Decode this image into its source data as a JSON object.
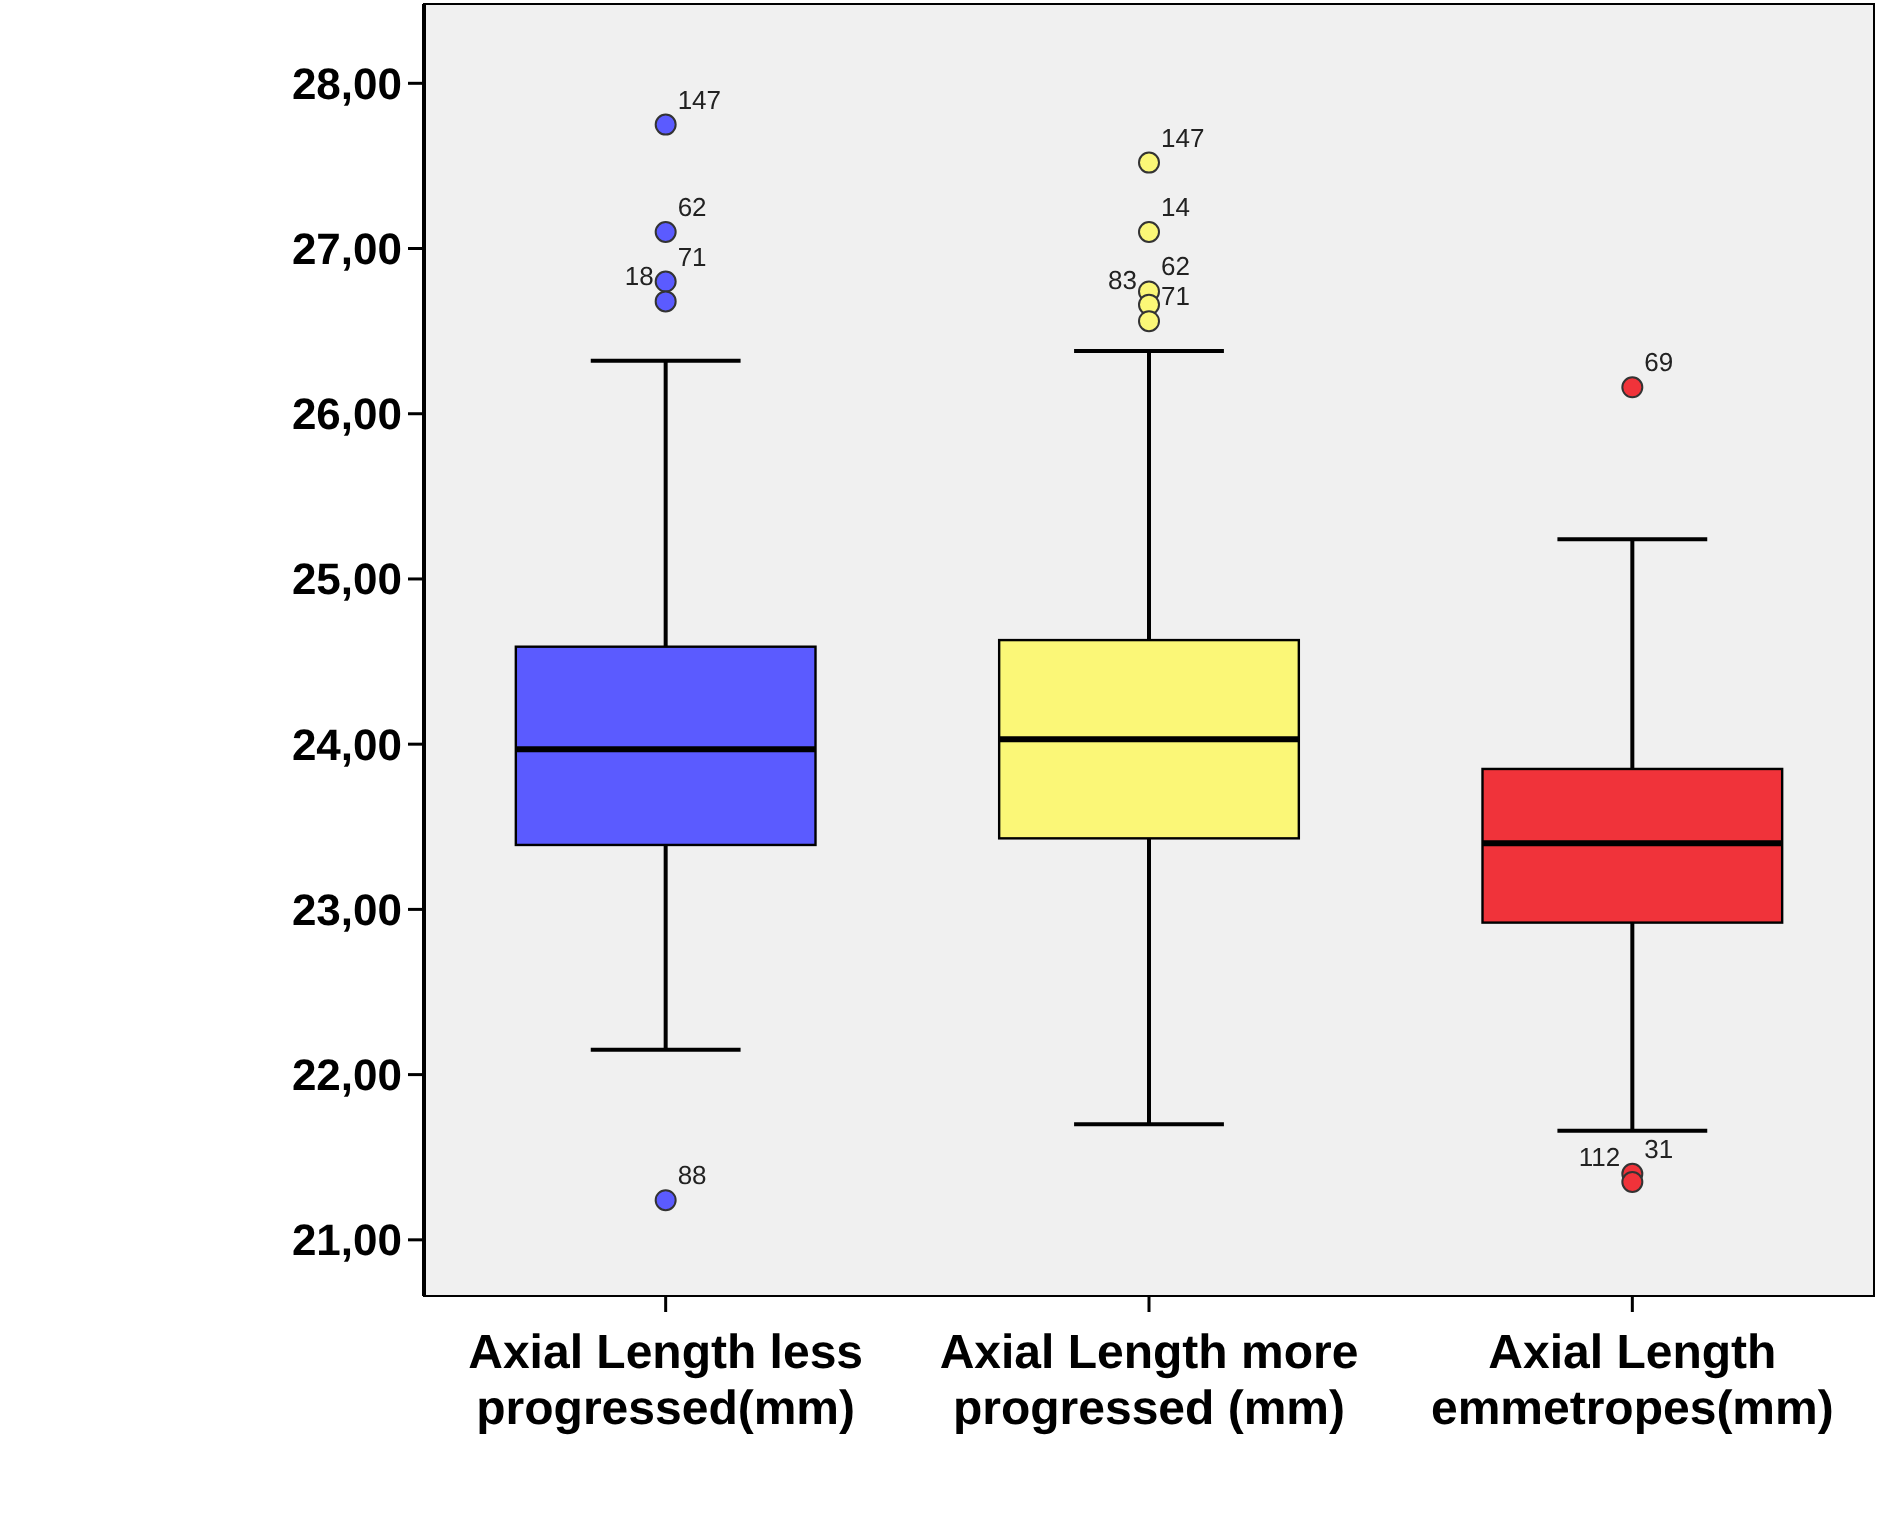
{
  "chart_data": {
    "type": "box",
    "categories": [
      "Axial Length less progressed(mm)",
      "Axial Length more progressed (mm)",
      "Axial Length emmetropes(mm)"
    ],
    "colors": [
      "#5b5bff",
      "#fbf777",
      "#f0333a"
    ],
    "boxes": [
      {
        "low": 22.15,
        "q1": 23.39,
        "median": 23.97,
        "q3": 24.59,
        "high": 26.32
      },
      {
        "low": 21.7,
        "q1": 23.43,
        "median": 24.03,
        "q3": 24.63,
        "high": 26.38
      },
      {
        "low": 21.66,
        "q1": 22.92,
        "median": 23.4,
        "q3": 23.85,
        "high": 25.24
      }
    ],
    "series": [
      {
        "type": "scatter",
        "marker": "circle",
        "x": [
          "Axial Length less progressed(mm)",
          "Axial Length less progressed(mm)",
          "Axial Length less progressed(mm)",
          "Axial Length less progressed(mm)",
          "Axial Length less progressed(mm)",
          "Axial Length more progressed (mm)",
          "Axial Length more progressed (mm)",
          "Axial Length more progressed (mm)",
          "Axial Length more progressed (mm)",
          "Axial Length more progressed (mm)",
          "Axial Length emmetropes(mm)",
          "Axial Length emmetropes(mm)",
          "Axial Length emmetropes(mm)"
        ],
        "values": [
          27.75,
          27.1,
          26.8,
          26.68,
          21.24,
          27.52,
          27.1,
          26.74,
          26.66,
          26.56,
          26.16,
          21.4,
          21.35
        ],
        "colors": [
          "#5b5bff",
          "#5b5bff",
          "#5b5bff",
          "#5b5bff",
          "#5b5bff",
          "#fbf777",
          "#fbf777",
          "#fbf777",
          "#fbf777",
          "#fbf777",
          "#f0333a",
          "#f0333a",
          "#f0333a"
        ]
      }
    ],
    "ylim": [
      20.66,
      28.48
    ],
    "yticks": [
      {
        "value": 21,
        "label": "21,00"
      },
      {
        "value": 22,
        "label": "22,00"
      },
      {
        "value": 23,
        "label": "23,00"
      },
      {
        "value": 24,
        "label": "24,00"
      },
      {
        "value": 25,
        "label": "25,00"
      },
      {
        "value": 26,
        "label": "26,00"
      },
      {
        "value": 27,
        "label": "27,00"
      },
      {
        "value": 28,
        "label": "28,00"
      }
    ],
    "grid": false,
    "annotations": [
      {
        "text": "147",
        "x": "Axial Length less progressed(mm)",
        "y": 27.75
      },
      {
        "text": "62",
        "x": "Axial Length less progressed(mm)",
        "y": 27.1
      },
      {
        "text": "71",
        "x": "Axial Length less progressed(mm)",
        "y": 26.8
      },
      {
        "text": "18",
        "x": "Axial Length less progressed(mm)",
        "y": 26.68
      },
      {
        "text": "88",
        "x": "Axial Length less progressed(mm)",
        "y": 21.24
      },
      {
        "text": "147",
        "x": "Axial Length more progressed (mm)",
        "y": 27.52
      },
      {
        "text": "14",
        "x": "Axial Length more progressed (mm)",
        "y": 27.1
      },
      {
        "text": "62",
        "x": "Axial Length more progressed (mm)",
        "y": 26.74
      },
      {
        "text": "83",
        "x": "Axial Length more progressed (mm)",
        "y": 26.66
      },
      {
        "text": "71",
        "x": "Axial Length more progressed (mm)",
        "y": 26.56
      },
      {
        "text": "69",
        "x": "Axial Length emmetropes(mm)",
        "y": 26.16
      },
      {
        "text": "31",
        "x": "Axial Length emmetropes(mm)",
        "y": 21.4
      },
      {
        "text": "112",
        "x": "Axial Length emmetropes(mm)",
        "y": 21.35
      }
    ]
  }
}
